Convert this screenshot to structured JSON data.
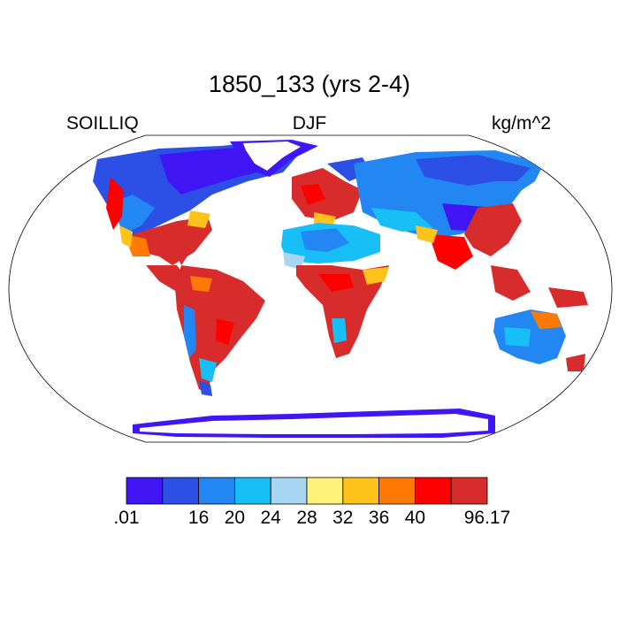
{
  "title": "1850_133 (yrs 2-4)",
  "left_string": "SOILLIQ",
  "center_string": "DJF",
  "right_string": "kg/m^2",
  "colorbar": {
    "colors": [
      "#4016f5",
      "#2c50e6",
      "#2287f3",
      "#17bff6",
      "#a7d6f2",
      "#fff27c",
      "#ffc21a",
      "#ff7a05",
      "#ff0000",
      "#d82c2c"
    ],
    "labels": [
      ".01",
      "16",
      "20",
      "24",
      "28",
      "32",
      "36",
      "40",
      "96.17"
    ]
  },
  "map": {
    "projection": "Robinson",
    "ocean_color": "#ffffff",
    "coastline_color": "#000000"
  }
}
